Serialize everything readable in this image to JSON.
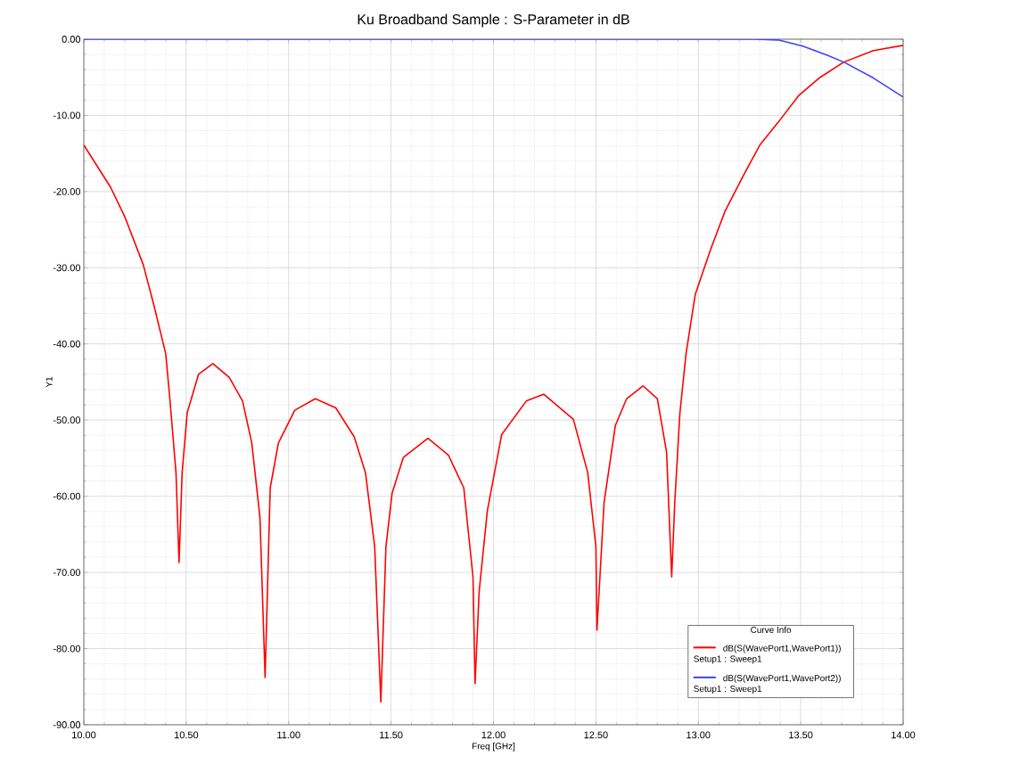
{
  "chart_data": {
    "type": "line",
    "title": "Ku Broadband Sample : S-Parameter in dB",
    "xlabel": "Freq [GHz]",
    "ylabel": "Y1",
    "legend_title": "Curve Info",
    "annotations": [
      "Setup1 : Sweep1",
      "Setup1 : Sweep1"
    ],
    "xlim": [
      10,
      14
    ],
    "ylim": [
      -90,
      0
    ],
    "xticks": [
      {
        "value": 10,
        "label": "10.00"
      },
      {
        "value": 10.5,
        "label": "10.50"
      },
      {
        "value": 11,
        "label": "11.00"
      },
      {
        "value": 11.5,
        "label": "11.50"
      },
      {
        "value": 12,
        "label": "12.00"
      },
      {
        "value": 12.5,
        "label": "12.50"
      },
      {
        "value": 13,
        "label": "13.00"
      },
      {
        "value": 13.5,
        "label": "13.50"
      },
      {
        "value": 14,
        "label": "14.00"
      }
    ],
    "yticks": [
      {
        "value": 0,
        "label": "0.00"
      },
      {
        "value": -10,
        "label": "-10.00"
      },
      {
        "value": -20,
        "label": "-20.00"
      },
      {
        "value": -30,
        "label": "-30.00"
      },
      {
        "value": -40,
        "label": "-40.00"
      },
      {
        "value": -50,
        "label": "-50.00"
      },
      {
        "value": -60,
        "label": "-60.00"
      },
      {
        "value": -70,
        "label": "-70.00"
      },
      {
        "value": -80,
        "label": "-80.00"
      },
      {
        "value": -90,
        "label": "-90.00"
      }
    ],
    "grid": true,
    "legend": "bottom right",
    "line_style": "solid",
    "series": [
      {
        "name": "dB(S(WavePort1,WavePort1))",
        "color": "#ff0000",
        "x": [
          10.0,
          10.13,
          10.2,
          10.29,
          10.34,
          10.4,
          10.42,
          10.45,
          10.465,
          10.48,
          10.505,
          10.56,
          10.63,
          10.71,
          10.775,
          10.82,
          10.86,
          10.885,
          10.91,
          10.95,
          11.03,
          11.13,
          11.23,
          11.32,
          11.375,
          11.42,
          11.45,
          11.475,
          11.505,
          11.56,
          11.68,
          11.78,
          11.855,
          11.9,
          11.91,
          11.93,
          11.97,
          12.04,
          12.16,
          12.245,
          12.39,
          12.46,
          12.5,
          12.505,
          12.54,
          12.595,
          12.65,
          12.73,
          12.8,
          12.845,
          12.87,
          12.885,
          12.91,
          12.94,
          12.985,
          13.06,
          13.13,
          13.22,
          13.3,
          13.39,
          13.49,
          13.595,
          13.71,
          13.855,
          14.0
        ],
        "values": [
          -13.9,
          -19.4,
          -23.3,
          -29.6,
          -34.7,
          -41.3,
          -47.2,
          -56.9,
          -68.7,
          -56.9,
          -49.0,
          -44.0,
          -42.6,
          -44.4,
          -47.5,
          -53.0,
          -62.8,
          -83.8,
          -58.9,
          -53.0,
          -48.7,
          -47.2,
          -48.4,
          -52.2,
          -56.9,
          -66.6,
          -87.0,
          -66.6,
          -59.6,
          -54.9,
          -52.4,
          -54.6,
          -58.9,
          -70.6,
          -84.6,
          -72.5,
          -61.9,
          -51.9,
          -47.5,
          -46.6,
          -49.9,
          -56.9,
          -66.6,
          -77.6,
          -60.8,
          -50.7,
          -47.2,
          -45.5,
          -47.2,
          -54.2,
          -70.6,
          -60.8,
          -49.1,
          -41.3,
          -33.5,
          -27.6,
          -22.6,
          -17.9,
          -13.9,
          -10.9,
          -7.4,
          -5.0,
          -3.0,
          -1.5,
          -0.8
        ]
      },
      {
        "name": "dB(S(WavePort1,WavePort2))",
        "color": "#4040ff",
        "x": [
          10.0,
          13.28,
          13.39,
          13.51,
          13.63,
          13.71,
          13.855,
          14.0
        ],
        "values": [
          0,
          0,
          -0.1,
          -0.9,
          -2.1,
          -3.0,
          -5.1,
          -7.6
        ]
      }
    ]
  }
}
